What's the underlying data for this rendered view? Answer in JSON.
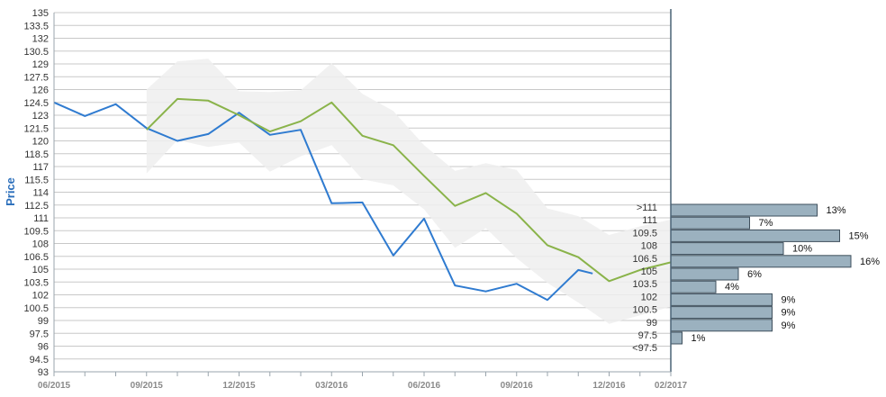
{
  "chart_data": {
    "type": "line",
    "title": "",
    "ylabel": "Price",
    "xlabel": "",
    "ylim": [
      93,
      135
    ],
    "y_ticks": [
      "135",
      "133.5",
      "132",
      "130.5",
      "129",
      "127.5",
      "126",
      "124.5",
      "123",
      "121.5",
      "120",
      "118.5",
      "117",
      "115.5",
      "114",
      "112.5",
      "111",
      "109.5",
      "108",
      "106.5",
      "105",
      "103.5",
      "102",
      "100.5",
      "99",
      "97.5",
      "96",
      "94.5",
      "93"
    ],
    "x_ticks": [
      "06/2015",
      "09/2015",
      "12/2015",
      "03/2016",
      "06/2016",
      "09/2016",
      "12/2016",
      "02/2017"
    ],
    "x_range": [
      "2015-06",
      "2017-02"
    ],
    "grid": true,
    "legend": "none",
    "series": [
      {
        "color": "#2f7bd0",
        "points": [
          [
            "2015-06",
            124.5
          ],
          [
            "2015-07",
            122.9
          ],
          [
            "2015-08",
            124.3
          ],
          [
            "2015-09",
            121.5
          ],
          [
            "2015-10",
            120.0
          ],
          [
            "2015-11",
            120.8
          ],
          [
            "2015-12",
            123.3
          ],
          [
            "2016-01",
            120.7
          ],
          [
            "2016-02",
            121.3
          ],
          [
            "2016-03",
            112.7
          ],
          [
            "2016-04",
            112.8
          ],
          [
            "2016-05",
            106.6
          ],
          [
            "2016-06",
            110.9
          ],
          [
            "2016-07",
            103.1
          ],
          [
            "2016-08",
            102.4
          ],
          [
            "2016-09",
            103.3
          ],
          [
            "2016-10",
            101.4
          ],
          [
            "2016-11",
            104.9
          ],
          [
            "2016-11-15",
            104.5
          ]
        ]
      },
      {
        "color": "#8ab34a",
        "points": [
          [
            "2015-09",
            121.3
          ],
          [
            "2015-10",
            124.9
          ],
          [
            "2015-11",
            124.7
          ],
          [
            "2015-12",
            123.0
          ],
          [
            "2016-01",
            121.1
          ],
          [
            "2016-02",
            122.3
          ],
          [
            "2016-03",
            124.5
          ],
          [
            "2016-04",
            120.6
          ],
          [
            "2016-05",
            119.5
          ],
          [
            "2016-06",
            115.9
          ],
          [
            "2016-07",
            112.4
          ],
          [
            "2016-08",
            113.9
          ],
          [
            "2016-09",
            111.5
          ],
          [
            "2016-10",
            107.8
          ],
          [
            "2016-11",
            106.4
          ],
          [
            "2016-12",
            103.6
          ],
          [
            "2017-01",
            104.9
          ],
          [
            "2017-02",
            105.8
          ]
        ]
      }
    ],
    "band": {
      "color": "#eeeeee",
      "upper": [
        [
          "2015-09",
          126.0
        ],
        [
          "2015-10",
          129.3
        ],
        [
          "2015-11",
          129.6
        ],
        [
          "2015-12",
          125.8
        ],
        [
          "2016-01",
          125.7
        ],
        [
          "2016-02",
          125.9
        ],
        [
          "2016-03",
          129.1
        ],
        [
          "2016-04",
          125.5
        ],
        [
          "2016-05",
          123.5
        ],
        [
          "2016-06",
          119.5
        ],
        [
          "2016-07",
          116.5
        ],
        [
          "2016-08",
          117.4
        ],
        [
          "2016-09",
          116.6
        ],
        [
          "2016-10",
          112.1
        ],
        [
          "2016-11",
          111.2
        ],
        [
          "2016-12",
          109.0
        ],
        [
          "2017-01",
          110.0
        ],
        [
          "2017-02",
          110.8
        ]
      ],
      "lower": [
        [
          "2015-09",
          116.2
        ],
        [
          "2015-10",
          120.1
        ],
        [
          "2015-11",
          119.3
        ],
        [
          "2015-12",
          119.8
        ],
        [
          "2016-01",
          116.4
        ],
        [
          "2016-02",
          118.2
        ],
        [
          "2016-03",
          119.5
        ],
        [
          "2016-04",
          115.5
        ],
        [
          "2016-05",
          114.8
        ],
        [
          "2016-06",
          112.0
        ],
        [
          "2016-07",
          107.5
        ],
        [
          "2016-08",
          109.8
        ],
        [
          "2016-09",
          106.3
        ],
        [
          "2016-10",
          103.4
        ],
        [
          "2016-11",
          101.1
        ],
        [
          "2016-12",
          98.6
        ],
        [
          "2017-01",
          99.6
        ],
        [
          "2017-02",
          100.6
        ]
      ]
    },
    "distribution": [
      {
        "label": ">111",
        "pct": 13,
        "pct_label": "13%"
      },
      {
        "label": "111",
        "pct": 7,
        "pct_label": "7%"
      },
      {
        "label": "109.5",
        "pct": 15,
        "pct_label": "15%"
      },
      {
        "label": "108",
        "pct": 10,
        "pct_label": "10%"
      },
      {
        "label": "106.5",
        "pct": 16,
        "pct_label": "16%"
      },
      {
        "label": "105",
        "pct": 6,
        "pct_label": "6%"
      },
      {
        "label": "103.5",
        "pct": 4,
        "pct_label": "4%"
      },
      {
        "label": "102",
        "pct": 9,
        "pct_label": "9%"
      },
      {
        "label": "100.5",
        "pct": 9,
        "pct_label": "9%"
      },
      {
        "label": "99",
        "pct": 9,
        "pct_label": "9%"
      },
      {
        "label": "97.5",
        "pct": 1,
        "pct_label": "1%"
      },
      {
        "label": "<97.5",
        "pct": null,
        "pct_label": ""
      }
    ],
    "distribution_color": "#9bb1bf"
  }
}
